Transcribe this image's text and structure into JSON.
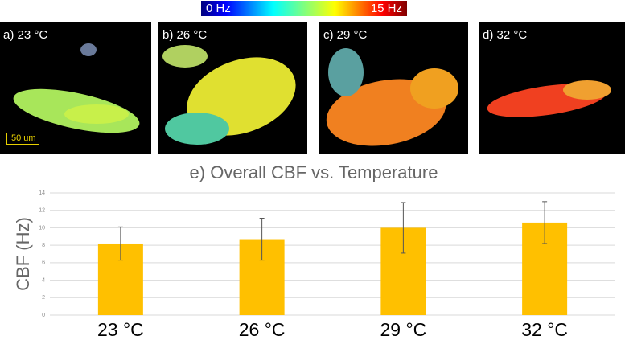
{
  "panels": [
    {
      "label": "a) 23 °C"
    },
    {
      "label": "b) 26 °C"
    },
    {
      "label": "c) 29 °C"
    },
    {
      "label": "d) 32 °C"
    }
  ],
  "colorbar": {
    "min_label": "0 Hz",
    "max_label": "15 Hz"
  },
  "scale_bar": "50 um",
  "chart_data": {
    "type": "bar",
    "title": "e) Overall CBF vs. Temperature",
    "y_label": "CBF  (Hz)",
    "categories": [
      "23 °C",
      "26 °C",
      "29 °C",
      "32 °C"
    ],
    "values": [
      8.2,
      8.7,
      10.0,
      10.6
    ],
    "errors": [
      1.9,
      2.4,
      2.9,
      2.4
    ],
    "color": "#ffc000",
    "ylim": [
      0,
      14
    ],
    "yticks": [
      0,
      2,
      4,
      6,
      8,
      10,
      12,
      14
    ],
    "grid": true
  }
}
